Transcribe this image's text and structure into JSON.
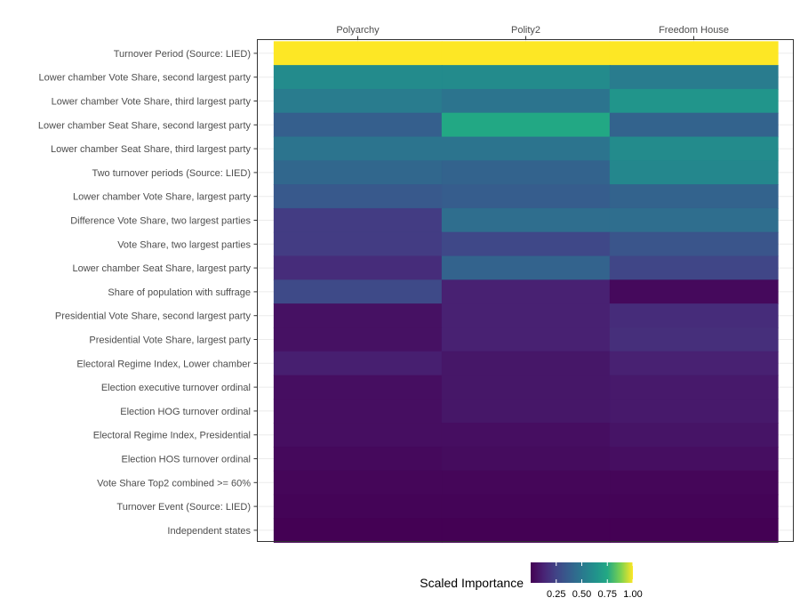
{
  "chart_data": {
    "type": "heatmap",
    "x_categories": [
      "Polyarchy",
      "Polity2",
      "Freedom House"
    ],
    "y_categories": [
      "Turnover Period (Source: LIED)",
      "Lower chamber Vote Share, second largest party",
      "Lower chamber Vote Share, third largest party",
      "Lower chamber Seat Share, second largest party",
      "Lower chamber Seat Share, third largest party",
      "Two turnover periods (Source: LIED)",
      "Lower chamber Vote Share, largest party",
      "Difference Vote Share, two largest parties",
      "Vote Share, two largest parties",
      "Lower chamber Seat Share, largest party",
      "Share of population with suffrage",
      "Presidential Vote Share, second largest party",
      "Presidential Vote Share, largest party",
      "Electoral Regime Index, Lower chamber",
      "Election executive turnover ordinal",
      "Election HOG turnover ordinal",
      "Electoral Regime Index, Presidential",
      "Election HOS turnover ordinal",
      "Vote Share Top2 combined >= 60%",
      "Turnover Event (Source: LIED)",
      "Independent states"
    ],
    "values": [
      [
        1.0,
        1.0,
        1.0
      ],
      [
        0.6,
        0.6,
        0.52
      ],
      [
        0.52,
        0.48,
        0.65
      ],
      [
        0.38,
        0.75,
        0.4
      ],
      [
        0.48,
        0.48,
        0.6
      ],
      [
        0.42,
        0.4,
        0.58
      ],
      [
        0.35,
        0.37,
        0.4
      ],
      [
        0.22,
        0.45,
        0.45
      ],
      [
        0.22,
        0.27,
        0.33
      ],
      [
        0.16,
        0.4,
        0.26
      ],
      [
        0.28,
        0.12,
        0.03
      ],
      [
        0.06,
        0.12,
        0.16
      ],
      [
        0.06,
        0.12,
        0.17
      ],
      [
        0.11,
        0.08,
        0.12
      ],
      [
        0.05,
        0.08,
        0.09
      ],
      [
        0.05,
        0.08,
        0.09
      ],
      [
        0.05,
        0.05,
        0.07
      ],
      [
        0.03,
        0.04,
        0.05
      ],
      [
        0.02,
        0.02,
        0.02
      ],
      [
        0.01,
        0.01,
        0.01
      ],
      [
        0.0,
        0.0,
        0.0
      ]
    ],
    "color_scale": "viridis",
    "value_range": [
      0,
      1
    ],
    "grid": true,
    "legend": {
      "title": "Scaled Importance",
      "position": "bottom",
      "ticks": [
        0.25,
        0.5,
        0.75,
        1.0
      ],
      "tick_labels": [
        "0.25",
        "0.50",
        "0.75",
        "1.00"
      ]
    },
    "x_axis_position": "top",
    "xlabel": "",
    "ylabel": "",
    "title": ""
  },
  "colors": {
    "panel_border": "#333333",
    "grid": "#ebebeb",
    "tick_text": "#4d4d4d",
    "background": "#ffffff"
  }
}
